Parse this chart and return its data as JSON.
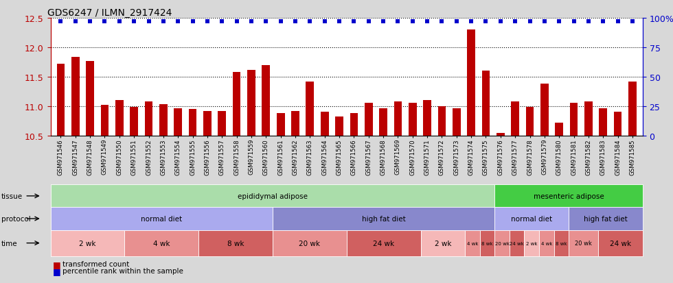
{
  "title": "GDS6247 / ILMN_2917424",
  "samples": [
    "GSM971546",
    "GSM971547",
    "GSM971548",
    "GSM971549",
    "GSM971550",
    "GSM971551",
    "GSM971552",
    "GSM971553",
    "GSM971554",
    "GSM971555",
    "GSM971556",
    "GSM971557",
    "GSM971558",
    "GSM971559",
    "GSM971560",
    "GSM971561",
    "GSM971562",
    "GSM971563",
    "GSM971564",
    "GSM971565",
    "GSM971566",
    "GSM971567",
    "GSM971568",
    "GSM971569",
    "GSM971570",
    "GSM971571",
    "GSM971572",
    "GSM971573",
    "GSM971574",
    "GSM971575",
    "GSM971576",
    "GSM971577",
    "GSM971578",
    "GSM971579",
    "GSM971580",
    "GSM971581",
    "GSM971582",
    "GSM971583",
    "GSM971584",
    "GSM971585"
  ],
  "values": [
    11.72,
    11.84,
    11.76,
    11.02,
    11.1,
    10.98,
    11.08,
    11.03,
    10.96,
    10.95,
    10.92,
    10.92,
    11.58,
    11.62,
    11.7,
    10.88,
    10.92,
    11.42,
    10.9,
    10.82,
    10.88,
    11.05,
    10.96,
    11.08,
    11.05,
    11.1,
    11.0,
    10.96,
    12.3,
    11.6,
    10.54,
    11.08,
    10.98,
    11.38,
    10.72,
    11.05,
    11.08,
    10.96,
    10.9,
    11.42
  ],
  "ylim_min": 10.5,
  "ylim_max": 12.5,
  "yticks": [
    10.5,
    11.0,
    11.5,
    12.0,
    12.5
  ],
  "bar_color": "#bb0000",
  "dot_color": "#0000cc",
  "plot_bg": "#ffffff",
  "fig_bg": "#d8d8d8",
  "tissue_regions": [
    {
      "label": "epididymal adipose",
      "start": 0,
      "end": 29,
      "color": "#aaddaa"
    },
    {
      "label": "mesenteric adipose",
      "start": 30,
      "end": 39,
      "color": "#44cc44"
    }
  ],
  "protocol_regions": [
    {
      "label": "normal diet",
      "start": 0,
      "end": 14,
      "color": "#aaaaee"
    },
    {
      "label": "high fat diet",
      "start": 15,
      "end": 29,
      "color": "#8888cc"
    },
    {
      "label": "normal diet",
      "start": 30,
      "end": 34,
      "color": "#aaaaee"
    },
    {
      "label": "high fat diet",
      "start": 35,
      "end": 39,
      "color": "#8888cc"
    }
  ],
  "time_regions": [
    {
      "label": "2 wk",
      "start": 0,
      "end": 4,
      "color": "#f5b8b8"
    },
    {
      "label": "4 wk",
      "start": 5,
      "end": 9,
      "color": "#e89090"
    },
    {
      "label": "8 wk",
      "start": 10,
      "end": 14,
      "color": "#d06060"
    },
    {
      "label": "20 wk",
      "start": 15,
      "end": 19,
      "color": "#e89090"
    },
    {
      "label": "24 wk",
      "start": 20,
      "end": 24,
      "color": "#d06060"
    },
    {
      "label": "2 wk",
      "start": 25,
      "end": 27,
      "color": "#f5b8b8"
    },
    {
      "label": "4 wk",
      "start": 28,
      "end": 28,
      "color": "#e89090"
    },
    {
      "label": "8 wk",
      "start": 29,
      "end": 29,
      "color": "#d06060"
    },
    {
      "label": "20 wk",
      "start": 30,
      "end": 30,
      "color": "#e89090"
    },
    {
      "label": "24 wk",
      "start": 31,
      "end": 31,
      "color": "#d06060"
    },
    {
      "label": "2 wk",
      "start": 32,
      "end": 32,
      "color": "#f5b8b8"
    },
    {
      "label": "4 wk",
      "start": 33,
      "end": 33,
      "color": "#e89090"
    },
    {
      "label": "8 wk",
      "start": 34,
      "end": 34,
      "color": "#d06060"
    },
    {
      "label": "20 wk",
      "start": 35,
      "end": 36,
      "color": "#e89090"
    },
    {
      "label": "24 wk",
      "start": 37,
      "end": 39,
      "color": "#d06060"
    }
  ]
}
